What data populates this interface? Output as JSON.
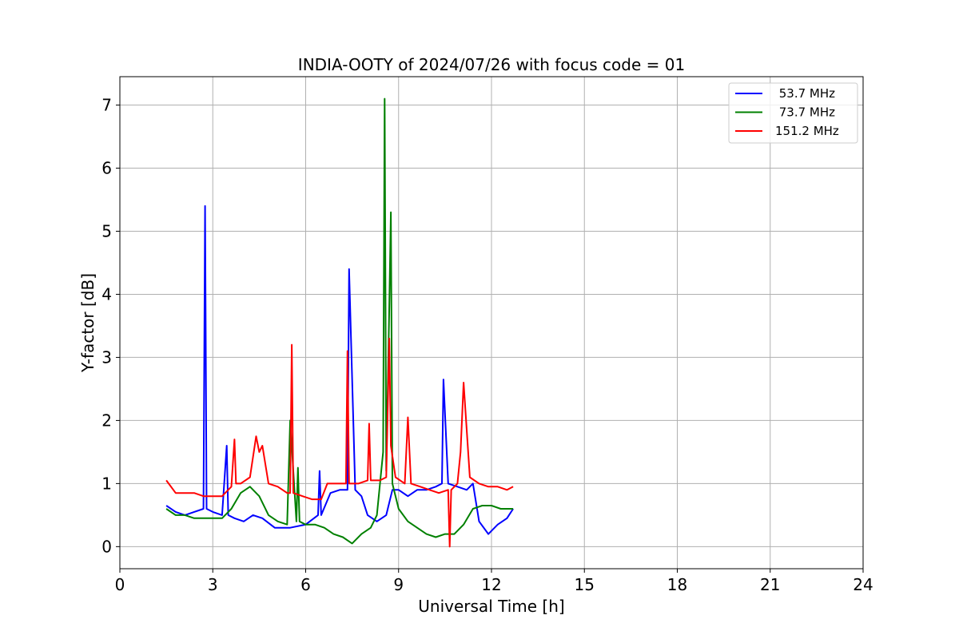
{
  "chart_data": {
    "type": "line",
    "title": "INDIA-OOTY of 2024/07/26 with focus code = 01",
    "xlabel": "Universal Time [h]",
    "ylabel": "Y-factor [dB]",
    "xlim": [
      0,
      24
    ],
    "ylim": [
      -0.35,
      7.45
    ],
    "xticks": [
      0,
      3,
      6,
      9,
      12,
      15,
      18,
      21,
      24
    ],
    "yticks": [
      0,
      1,
      2,
      3,
      4,
      5,
      6,
      7
    ],
    "grid": true,
    "legend_position": "top-right",
    "series": [
      {
        "name": " 53.7 MHz",
        "color": "#0000ff",
        "x": [
          1.5,
          1.8,
          2.1,
          2.4,
          2.7,
          2.75,
          2.8,
          3.0,
          3.3,
          3.45,
          3.5,
          3.7,
          4.0,
          4.3,
          4.6,
          5.0,
          5.5,
          6.0,
          6.4,
          6.45,
          6.5,
          6.8,
          7.1,
          7.35,
          7.4,
          7.6,
          7.8,
          8.0,
          8.3,
          8.6,
          8.8,
          9.0,
          9.3,
          9.6,
          9.9,
          10.2,
          10.4,
          10.45,
          10.6,
          10.9,
          11.2,
          11.4,
          11.6,
          11.9,
          12.2,
          12.5,
          12.7
        ],
        "y": [
          0.65,
          0.55,
          0.5,
          0.55,
          0.6,
          5.4,
          0.6,
          0.55,
          0.5,
          1.6,
          0.5,
          0.45,
          0.4,
          0.5,
          0.45,
          0.3,
          0.3,
          0.35,
          0.5,
          1.2,
          0.5,
          0.85,
          0.9,
          0.9,
          4.4,
          0.9,
          0.8,
          0.5,
          0.4,
          0.5,
          0.9,
          0.9,
          0.8,
          0.9,
          0.9,
          0.95,
          1.0,
          2.65,
          1.0,
          0.95,
          0.9,
          1.0,
          0.4,
          0.2,
          0.35,
          0.45,
          0.6
        ]
      },
      {
        "name": " 73.7 MHz",
        "color": "#008000",
        "x": [
          1.5,
          1.8,
          2.1,
          2.4,
          2.7,
          3.0,
          3.3,
          3.6,
          3.9,
          4.2,
          4.5,
          4.8,
          5.1,
          5.4,
          5.5,
          5.7,
          5.75,
          5.8,
          6.0,
          6.3,
          6.6,
          6.9,
          7.2,
          7.5,
          7.8,
          8.1,
          8.3,
          8.5,
          8.55,
          8.6,
          8.7,
          8.75,
          8.8,
          9.0,
          9.3,
          9.6,
          9.9,
          10.2,
          10.5,
          10.8,
          11.1,
          11.4,
          11.7,
          12.0,
          12.3,
          12.7
        ],
        "y": [
          0.6,
          0.5,
          0.5,
          0.45,
          0.45,
          0.45,
          0.45,
          0.6,
          0.85,
          0.95,
          0.8,
          0.5,
          0.4,
          0.35,
          2.0,
          0.4,
          1.25,
          0.4,
          0.35,
          0.35,
          0.3,
          0.2,
          0.15,
          0.05,
          0.2,
          0.3,
          0.5,
          1.5,
          7.1,
          1.2,
          3.8,
          5.3,
          1.0,
          0.6,
          0.4,
          0.3,
          0.2,
          0.15,
          0.2,
          0.2,
          0.35,
          0.6,
          0.65,
          0.65,
          0.6,
          0.6
        ]
      },
      {
        "name": "151.2 MHz",
        "color": "#ff0000",
        "x": [
          1.5,
          1.8,
          2.1,
          2.4,
          2.7,
          3.0,
          3.3,
          3.6,
          3.7,
          3.75,
          3.9,
          4.2,
          4.4,
          4.5,
          4.6,
          4.8,
          5.1,
          5.4,
          5.5,
          5.55,
          5.6,
          5.9,
          6.2,
          6.5,
          6.7,
          7.0,
          7.3,
          7.35,
          7.4,
          7.7,
          8.0,
          8.05,
          8.1,
          8.4,
          8.6,
          8.7,
          8.75,
          8.9,
          9.2,
          9.3,
          9.4,
          9.7,
          10.0,
          10.3,
          10.6,
          10.65,
          10.7,
          10.9,
          11.0,
          11.1,
          11.3,
          11.6,
          11.9,
          12.2,
          12.5,
          12.7
        ],
        "y": [
          1.05,
          0.85,
          0.85,
          0.85,
          0.8,
          0.8,
          0.8,
          0.95,
          1.7,
          1.0,
          1.0,
          1.1,
          1.75,
          1.5,
          1.6,
          1.0,
          0.95,
          0.85,
          0.85,
          3.2,
          0.85,
          0.8,
          0.75,
          0.75,
          1.0,
          1.0,
          1.0,
          3.1,
          1.0,
          1.0,
          1.05,
          1.95,
          1.05,
          1.05,
          1.1,
          3.3,
          1.6,
          1.1,
          1.0,
          2.05,
          1.0,
          0.95,
          0.9,
          0.85,
          0.9,
          0.0,
          0.9,
          1.0,
          1.5,
          2.6,
          1.1,
          1.0,
          0.95,
          0.95,
          0.9,
          0.95
        ]
      }
    ]
  }
}
